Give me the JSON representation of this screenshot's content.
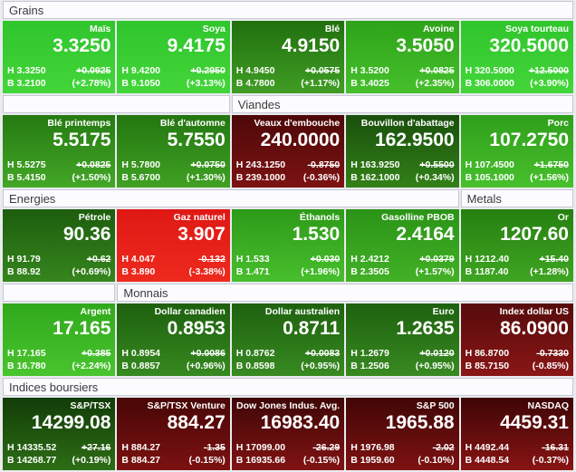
{
  "board": {
    "rows": [
      {
        "headers": [
          {
            "id": "grains",
            "label": "Grains",
            "span": 5
          }
        ],
        "tiles": [
          {
            "id": "mais",
            "name": "Maïs",
            "price": "3.3250",
            "high": "H 3.3250",
            "low": "B 3.2100",
            "change": "+0.0925",
            "pct": "(+2.78%)",
            "color_top": "#2fc52c",
            "color_bottom": "#43d63a"
          },
          {
            "id": "soya",
            "name": "Soya",
            "price": "9.4175",
            "high": "H 9.4200",
            "low": "B 9.1050",
            "change": "+0.2950",
            "pct": "(+3.13%)",
            "color_top": "#2fc52c",
            "color_bottom": "#43d63a"
          },
          {
            "id": "ble",
            "name": "Blé",
            "price": "4.9150",
            "high": "H 4.9450",
            "low": "B 4.7800",
            "change": "+0.0575",
            "pct": "(+1.17%)",
            "color_top": "#20700e",
            "color_bottom": "#409d24"
          },
          {
            "id": "avoine",
            "name": "Avoine",
            "price": "3.5050",
            "high": "H 3.5200",
            "low": "B 3.4025",
            "change": "+0.0825",
            "pct": "(+2.35%)",
            "color_top": "#2da319",
            "color_bottom": "#46c02c"
          },
          {
            "id": "soya-tourteau",
            "name": "Soya tourteau",
            "price": "320.5000",
            "high": "H 320.5000",
            "low": "B 306.0000",
            "change": "+12.5000",
            "pct": "(+3.90%)",
            "color_top": "#2fc52c",
            "color_bottom": "#43d63a"
          }
        ]
      },
      {
        "headers": [
          {
            "id": "spacer",
            "label": "",
            "span": 2
          },
          {
            "id": "viandes",
            "label": "Viandes",
            "span": 3
          }
        ],
        "tiles": [
          {
            "id": "ble-printemps",
            "name": "Blé printemps",
            "price": "5.5175",
            "high": "H 5.5275",
            "low": "B 5.4150",
            "change": "+0.0825",
            "pct": "(+1.50%)",
            "color_top": "#257a12",
            "color_bottom": "#44a727"
          },
          {
            "id": "ble-automne",
            "name": "Blé d'automne",
            "price": "5.7550",
            "high": "H 5.7800",
            "low": "B 5.6700",
            "change": "+0.0750",
            "pct": "(+1.30%)",
            "color_top": "#237610",
            "color_bottom": "#40a123"
          },
          {
            "id": "veaux-embouche",
            "name": "Veaux d'embouche",
            "price": "240.0000",
            "high": "H 243.1250",
            "low": "B 239.1000",
            "change": "-0.8750",
            "pct": "(-0.36%)",
            "color_top": "#4d0808",
            "color_bottom": "#7d1313"
          },
          {
            "id": "bouvillon-abattage",
            "name": "Bouvillon d'abattage",
            "price": "162.9500",
            "high": "H 163.9250",
            "low": "B 162.1000",
            "change": "+0.5500",
            "pct": "(+0.34%)",
            "color_top": "#194f0c",
            "color_bottom": "#338118"
          },
          {
            "id": "porc",
            "name": "Porc",
            "price": "107.2750",
            "high": "H 107.4500",
            "low": "B 105.1000",
            "change": "+1.6750",
            "pct": "(+1.56%)",
            "color_top": "#2f9f1b",
            "color_bottom": "#48c02d"
          }
        ]
      },
      {
        "headers": [
          {
            "id": "energies",
            "label": "Energies",
            "span": 4
          },
          {
            "id": "metals",
            "label": "Metals",
            "span": 1
          }
        ],
        "tiles": [
          {
            "id": "petrole",
            "name": "Pétrole",
            "price": "90.36",
            "high": "H 91.79",
            "low": "B 88.92",
            "change": "+0.62",
            "pct": "(+0.69%)",
            "color_top": "#1d5d0e",
            "color_bottom": "#36851d"
          },
          {
            "id": "gaz-naturel",
            "name": "Gaz naturel",
            "price": "3.907",
            "high": "H 4.047",
            "low": "B 3.890",
            "change": "-0.132",
            "pct": "(-3.38%)",
            "color_top": "#df1814",
            "color_bottom": "#ee2a1e"
          },
          {
            "id": "ethanols",
            "name": "Éthanols",
            "price": "1.530",
            "high": "H 1.533",
            "low": "B 1.471",
            "change": "+0.030",
            "pct": "(+1.96%)",
            "color_top": "#2d9a19",
            "color_bottom": "#47bf2c"
          },
          {
            "id": "gasolline-pbob",
            "name": "Gasolline PBOB",
            "price": "2.4164",
            "high": "H 2.4212",
            "low": "B 2.3505",
            "change": "+0.0379",
            "pct": "(+1.57%)",
            "color_top": "#2b9317",
            "color_bottom": "#42b126"
          },
          {
            "id": "or",
            "name": "Or",
            "price": "1207.60",
            "high": "H 1212.40",
            "low": "B 1187.40",
            "change": "+15.40",
            "pct": "(+1.28%)",
            "color_top": "#268010",
            "color_bottom": "#3ea522"
          }
        ]
      },
      {
        "headers": [
          {
            "id": "spacer",
            "label": "",
            "span": 1
          },
          {
            "id": "monnais",
            "label": "Monnais",
            "span": 4
          }
        ],
        "tiles": [
          {
            "id": "argent",
            "name": "Argent",
            "price": "17.165",
            "high": "H 17.165",
            "low": "B 16.780",
            "change": "+0.385",
            "pct": "(+2.24%)",
            "color_top": "#30a81c",
            "color_bottom": "#49c52e"
          },
          {
            "id": "dollar-canadien",
            "name": "Dollar canadien",
            "price": "0.8953",
            "high": "H 0.8954",
            "low": "B 0.8857",
            "change": "+0.0086",
            "pct": "(+0.96%)",
            "color_top": "#1d600e",
            "color_bottom": "#378920"
          },
          {
            "id": "dollar-australien",
            "name": "Dollar australien",
            "price": "0.8711",
            "high": "H 0.8762",
            "low": "B 0.8598",
            "change": "+0.0083",
            "pct": "(+0.95%)",
            "color_top": "#1e610f",
            "color_bottom": "#388a21"
          },
          {
            "id": "euro",
            "name": "Euro",
            "price": "1.2635",
            "high": "H 1.2679",
            "low": "B 1.2506",
            "change": "+0.0120",
            "pct": "(+0.95%)",
            "color_top": "#1e610f",
            "color_bottom": "#388a21"
          },
          {
            "id": "index-dollar-us",
            "name": "Index dollar US",
            "price": "86.0900",
            "high": "H 86.8700",
            "low": "B 85.7150",
            "change": "-0.7330",
            "pct": "(-0.85%)",
            "color_top": "#570b0b",
            "color_bottom": "#8a1616"
          }
        ]
      },
      {
        "headers": [
          {
            "id": "indices-boursiers",
            "label": "Indices boursiers",
            "span": 5
          }
        ],
        "tiles": [
          {
            "id": "sptsx",
            "name": "S&P/TSX",
            "price": "14299.08",
            "high": "H 14335.52",
            "low": "B 14268.77",
            "change": "+27.16",
            "pct": "(+0.19%)",
            "color_top": "#123c08",
            "color_bottom": "#2d6e15"
          },
          {
            "id": "sptsx-venture",
            "name": "S&P/TSX Venture",
            "price": "884.27",
            "high": "H 884.27",
            "low": "B 884.27",
            "change": "-1.35",
            "pct": "(-0.15%)",
            "color_top": "#480707",
            "color_bottom": "#7c1111"
          },
          {
            "id": "dow-jones",
            "name": "Dow Jones Indus. Avg.",
            "price": "16983.40",
            "high": "H 17099.00",
            "low": "B 16935.66",
            "change": "-26.29",
            "pct": "(-0.15%)",
            "color_top": "#3f0606",
            "color_bottom": "#811313"
          },
          {
            "id": "sp500",
            "name": "S&P 500",
            "price": "1965.88",
            "high": "H 1976.98",
            "low": "B 1959.60",
            "change": "-2.02",
            "pct": "(-0.10%)",
            "color_top": "#410606",
            "color_bottom": "#7e1212"
          },
          {
            "id": "nasdaq",
            "name": "NASDAQ",
            "price": "4459.31",
            "high": "H 4492.44",
            "low": "B 4448.54",
            "change": "-16.31",
            "pct": "(-0.37%)",
            "color_top": "#3e0505",
            "color_bottom": "#891414"
          }
        ]
      }
    ]
  }
}
